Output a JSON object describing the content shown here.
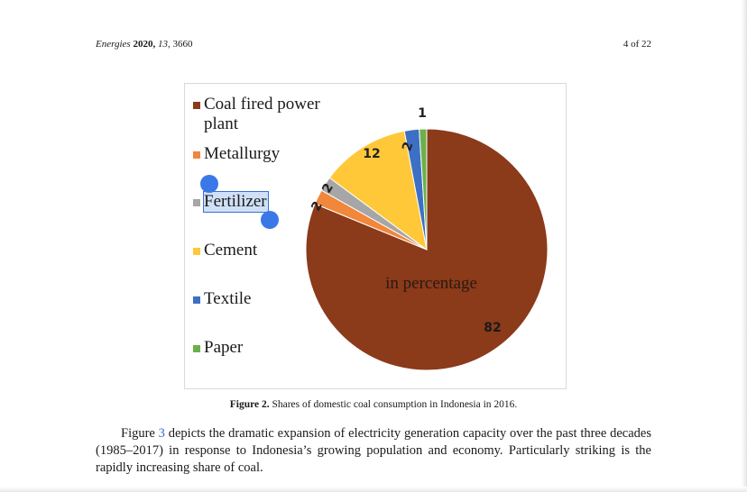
{
  "header": {
    "journal": "Energies",
    "year": "2020,",
    "volume": "13,",
    "article": "3660",
    "page": "4 of 22"
  },
  "chart_data": {
    "type": "pie",
    "categories": [
      "Coal fired power plant",
      "Metallurgy",
      "Fertilizer",
      "Cement",
      "Textile",
      "Paper"
    ],
    "values": [
      82,
      2,
      2,
      12,
      2,
      1
    ],
    "data_labels": [
      "82",
      "2",
      "2",
      "12",
      "2",
      "1"
    ],
    "colors": [
      "#8b3a1a",
      "#f0873a",
      "#a6a6a6",
      "#ffc838",
      "#3d6fc4",
      "#6bb04a"
    ],
    "annotation": "in percentage",
    "legend_position": "left",
    "selected_legend_index": 2,
    "selected_legend_text": "Fertilizer"
  },
  "caption": {
    "label": "Figure 2.",
    "text": "Shares of domestic coal consumption in Indonesia in 2016."
  },
  "body": {
    "before_link": "Figure",
    "link": "3",
    "after_link": "depicts the dramatic expansion of electricity generation capacity over the past three decades (1985–2017) in response to Indonesia’s growing population and economy. Particularly striking is the rapidly increasing share of coal."
  }
}
